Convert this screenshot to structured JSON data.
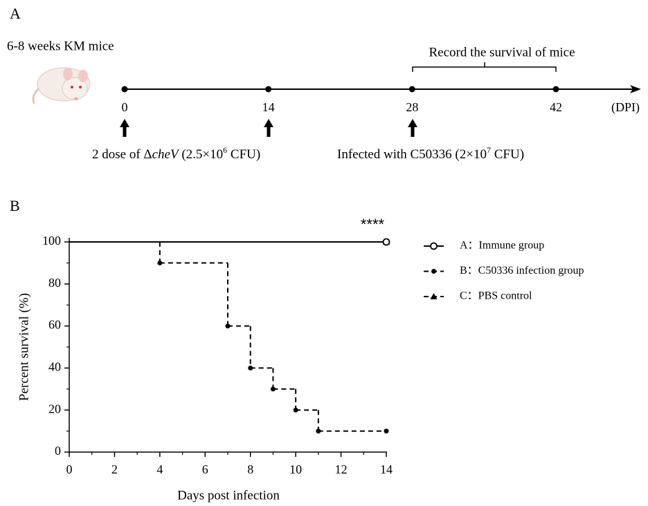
{
  "panel_a": {
    "label": "A",
    "subject": "6-8 weeks KM mice",
    "record_label": "Record the survival of mice",
    "timeline_days": [
      0,
      14,
      28,
      42
    ],
    "unit": "(DPI)",
    "dose_text": [
      "2 dose of Δ",
      "cheV",
      " (2.5×10",
      "6",
      " CFU)"
    ],
    "infection_text": [
      "Infected with C50336 (2×10",
      "7",
      " CFU)"
    ]
  },
  "chart_data": {
    "type": "line",
    "panel_label": "B",
    "x_label": "Days post infection",
    "y_label": "Percent survival (%)",
    "annotation": "****",
    "xlim": [
      0,
      14
    ],
    "xticks": [
      0,
      2,
      4,
      6,
      8,
      10,
      12,
      14
    ],
    "ylim": [
      0,
      100
    ],
    "yticks": [
      0,
      20,
      40,
      60,
      80,
      100
    ],
    "step": true,
    "series": [
      {
        "name": "A：Immune group",
        "color": "#000000",
        "dash": false,
        "marker": "open-circle",
        "x": [
          0,
          14
        ],
        "values": [
          100,
          100
        ]
      },
      {
        "name": "B：C50336 infection group",
        "color": "#000000",
        "dash": true,
        "marker": "dot",
        "x": [
          0,
          4,
          7,
          8,
          9,
          10,
          11,
          14
        ],
        "values": [
          100,
          90,
          60,
          40,
          30,
          20,
          10,
          10
        ]
      },
      {
        "name": "C：PBS control",
        "color": "#000000",
        "dash": true,
        "marker": "triangle",
        "x": [
          0,
          14
        ],
        "values": [
          100,
          100
        ]
      }
    ]
  }
}
